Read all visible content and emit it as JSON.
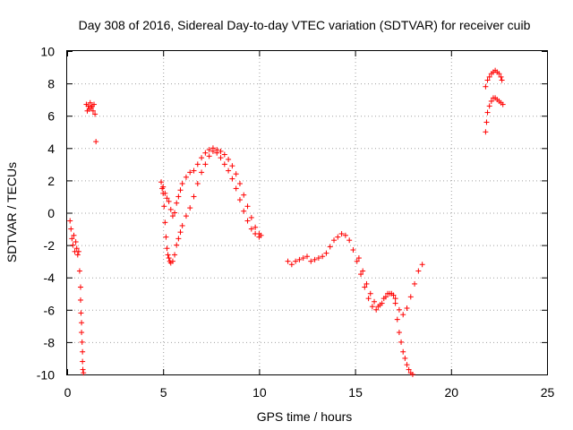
{
  "chart_data": {
    "type": "scatter",
    "title": "Day 308 of 2016, Sidereal Day-to-day VTEC variation (SDTVAR) for receiver cuib",
    "xlabel": "GPS time / hours",
    "ylabel": "SDTVAR / TECUs",
    "xlim": [
      0,
      25
    ],
    "ylim": [
      -10,
      10
    ],
    "xticks": [
      "0",
      "5",
      "10",
      "15",
      "20",
      "25"
    ],
    "yticks": [
      "-10",
      "-8",
      "-6",
      "-4",
      "-2",
      "0",
      "2",
      "4",
      "6",
      "8",
      "10"
    ],
    "marker": "plus",
    "color": "#ff0000",
    "grid": true,
    "series": [
      {
        "name": "SDTVAR",
        "points": [
          [
            0.15,
            -0.5
          ],
          [
            0.2,
            -1.0
          ],
          [
            0.25,
            -1.6
          ],
          [
            0.3,
            -2.0
          ],
          [
            0.35,
            -1.4
          ],
          [
            0.4,
            -2.4
          ],
          [
            0.45,
            -1.8
          ],
          [
            0.5,
            -2.2
          ],
          [
            0.55,
            -2.6
          ],
          [
            0.6,
            -2.4
          ],
          [
            0.65,
            -3.6
          ],
          [
            0.7,
            -4.6
          ],
          [
            0.7,
            -5.4
          ],
          [
            0.72,
            -6.2
          ],
          [
            0.75,
            -6.8
          ],
          [
            0.75,
            -7.4
          ],
          [
            0.78,
            -8.0
          ],
          [
            0.8,
            -8.6
          ],
          [
            0.8,
            -9.2
          ],
          [
            0.82,
            -9.7
          ],
          [
            0.85,
            -9.9
          ],
          [
            1.0,
            6.7
          ],
          [
            1.05,
            6.3
          ],
          [
            1.1,
            6.6
          ],
          [
            1.15,
            6.4
          ],
          [
            1.2,
            6.8
          ],
          [
            1.25,
            6.5
          ],
          [
            1.3,
            6.6
          ],
          [
            1.35,
            6.3
          ],
          [
            1.4,
            6.7
          ],
          [
            1.45,
            6.1
          ],
          [
            1.5,
            4.4
          ],
          [
            4.9,
            1.9
          ],
          [
            4.95,
            1.5
          ],
          [
            5.0,
            1.2
          ],
          [
            5.05,
            0.4
          ],
          [
            5.1,
            -0.6
          ],
          [
            5.15,
            -1.5
          ],
          [
            5.2,
            -2.2
          ],
          [
            5.25,
            -2.6
          ],
          [
            5.3,
            -2.8
          ],
          [
            5.35,
            -3.0
          ],
          [
            5.4,
            -3.1
          ],
          [
            5.5,
            -3.0
          ],
          [
            5.6,
            -2.6
          ],
          [
            5.7,
            -2.0
          ],
          [
            5.8,
            -1.6
          ],
          [
            5.9,
            -1.2
          ],
          [
            6.0,
            -0.8
          ],
          [
            6.2,
            -0.2
          ],
          [
            6.4,
            0.3
          ],
          [
            6.6,
            1.0
          ],
          [
            6.8,
            1.8
          ],
          [
            7.0,
            2.5
          ],
          [
            7.2,
            3.0
          ],
          [
            7.4,
            3.5
          ],
          [
            7.6,
            3.8
          ],
          [
            7.8,
            3.7
          ],
          [
            8.0,
            3.4
          ],
          [
            8.2,
            3.0
          ],
          [
            8.4,
            2.6
          ],
          [
            8.6,
            2.1
          ],
          [
            8.8,
            1.5
          ],
          [
            9.0,
            0.8
          ],
          [
            9.2,
            0.1
          ],
          [
            9.4,
            -0.5
          ],
          [
            9.6,
            -1.0
          ],
          [
            9.8,
            -1.3
          ],
          [
            10.0,
            -1.5
          ],
          [
            10.1,
            -1.4
          ],
          [
            5.0,
            1.6
          ],
          [
            5.1,
            1.2
          ],
          [
            5.2,
            0.9
          ],
          [
            5.3,
            0.7
          ],
          [
            5.4,
            0.2
          ],
          [
            5.5,
            -0.2
          ],
          [
            5.6,
            0.0
          ],
          [
            5.7,
            0.6
          ],
          [
            5.8,
            1.0
          ],
          [
            5.9,
            1.4
          ],
          [
            6.0,
            1.8
          ],
          [
            6.2,
            2.2
          ],
          [
            6.4,
            2.5
          ],
          [
            6.6,
            2.6
          ],
          [
            6.8,
            3.0
          ],
          [
            7.0,
            3.4
          ],
          [
            7.2,
            3.7
          ],
          [
            7.4,
            3.9
          ],
          [
            7.6,
            4.0
          ],
          [
            7.8,
            3.9
          ],
          [
            8.0,
            3.8
          ],
          [
            8.2,
            3.6
          ],
          [
            8.4,
            3.3
          ],
          [
            8.6,
            2.9
          ],
          [
            8.8,
            2.4
          ],
          [
            9.0,
            1.8
          ],
          [
            9.2,
            1.1
          ],
          [
            9.4,
            0.4
          ],
          [
            9.6,
            -0.3
          ],
          [
            9.8,
            -0.9
          ],
          [
            10.0,
            -1.3
          ],
          [
            11.5,
            -3.0
          ],
          [
            11.7,
            -3.2
          ],
          [
            11.9,
            -3.0
          ],
          [
            12.1,
            -2.9
          ],
          [
            12.3,
            -2.8
          ],
          [
            12.5,
            -2.7
          ],
          [
            12.7,
            -3.0
          ],
          [
            12.9,
            -2.9
          ],
          [
            13.1,
            -2.8
          ],
          [
            13.3,
            -2.7
          ],
          [
            13.5,
            -2.5
          ],
          [
            13.7,
            -2.1
          ],
          [
            13.9,
            -1.7
          ],
          [
            14.1,
            -1.5
          ],
          [
            14.3,
            -1.3
          ],
          [
            14.5,
            -1.4
          ],
          [
            14.7,
            -1.7
          ],
          [
            14.9,
            -2.3
          ],
          [
            15.1,
            -3.0
          ],
          [
            15.3,
            -3.8
          ],
          [
            15.5,
            -4.6
          ],
          [
            15.7,
            -5.3
          ],
          [
            15.9,
            -5.8
          ],
          [
            16.1,
            -6.0
          ],
          [
            16.3,
            -5.7
          ],
          [
            16.5,
            -5.3
          ],
          [
            16.7,
            -5.0
          ],
          [
            16.9,
            -5.0
          ],
          [
            17.1,
            -5.3
          ],
          [
            17.3,
            -6.0
          ],
          [
            17.5,
            -6.3
          ],
          [
            17.7,
            -5.9
          ],
          [
            17.9,
            -5.2
          ],
          [
            18.1,
            -4.4
          ],
          [
            18.3,
            -3.6
          ],
          [
            18.5,
            -3.2
          ],
          [
            15.2,
            -2.8
          ],
          [
            15.4,
            -3.6
          ],
          [
            15.6,
            -4.4
          ],
          [
            15.8,
            -5.0
          ],
          [
            16.0,
            -5.5
          ],
          [
            16.2,
            -5.8
          ],
          [
            16.4,
            -5.6
          ],
          [
            16.6,
            -5.2
          ],
          [
            16.8,
            -5.0
          ],
          [
            17.0,
            -5.1
          ],
          [
            17.1,
            -5.6
          ],
          [
            17.2,
            -6.6
          ],
          [
            17.3,
            -7.4
          ],
          [
            17.4,
            -8.0
          ],
          [
            17.5,
            -8.6
          ],
          [
            17.6,
            -9.0
          ],
          [
            17.7,
            -9.4
          ],
          [
            17.8,
            -9.7
          ],
          [
            17.9,
            -9.9
          ],
          [
            18.0,
            -10.0
          ],
          [
            21.8,
            7.8
          ],
          [
            21.9,
            8.2
          ],
          [
            22.0,
            8.4
          ],
          [
            22.1,
            8.6
          ],
          [
            22.2,
            8.7
          ],
          [
            22.3,
            8.8
          ],
          [
            22.4,
            8.7
          ],
          [
            22.5,
            8.6
          ],
          [
            22.6,
            8.4
          ],
          [
            22.65,
            8.2
          ],
          [
            21.8,
            5.0
          ],
          [
            21.85,
            5.6
          ],
          [
            21.9,
            6.2
          ],
          [
            22.0,
            6.6
          ],
          [
            22.1,
            6.9
          ],
          [
            22.2,
            7.1
          ],
          [
            22.3,
            7.1
          ],
          [
            22.4,
            7.0
          ],
          [
            22.5,
            6.9
          ],
          [
            22.6,
            6.8
          ],
          [
            22.7,
            6.7
          ]
        ]
      }
    ]
  }
}
